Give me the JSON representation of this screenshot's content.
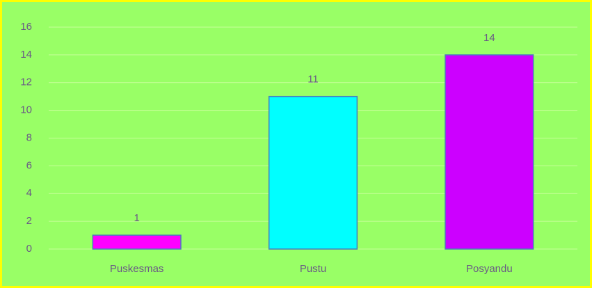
{
  "chart_data": {
    "type": "bar",
    "categories": [
      "Puskesmas",
      "Pustu",
      "Posyandu"
    ],
    "values": [
      1,
      11,
      14
    ],
    "colors": [
      "#ff00ff",
      "#00ffff",
      "#cc00ff"
    ],
    "ylim": [
      0,
      16
    ],
    "yticks": [
      0,
      2,
      4,
      6,
      8,
      10,
      12,
      14,
      16
    ],
    "grid": true
  }
}
